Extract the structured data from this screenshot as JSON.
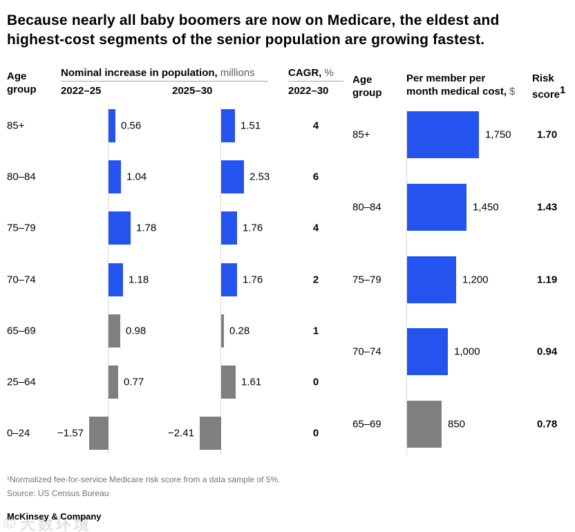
{
  "title": "Because nearly all baby boomers are now on Medicare, the eldest and highest-cost segments of the senior population are growing fastest.",
  "colors": {
    "blue": "#2453F0",
    "gray": "#7F7F7F",
    "axis_line": "#D8D8D8",
    "header_rule": "#A6A6A6",
    "unit_text": "#595959",
    "footnote_text": "#737373"
  },
  "headers": {
    "age_group": "Age group",
    "left_group_bold": "Nominal increase in population,",
    "left_group_unit": "millions",
    "left_col1": "2022–25",
    "left_col2": "2025–30",
    "cagr_bold": "CAGR,",
    "cagr_unit": "%",
    "cagr_sub": "2022–30",
    "right_cost_line1": "Per member per",
    "right_cost_line2": "month medical cost,",
    "right_cost_unit": "$",
    "risk_line1": "Risk",
    "risk_line2": "score",
    "risk_sup": "1"
  },
  "chart_data": [
    {
      "type": "bar",
      "orientation": "horizontal",
      "panel": "left",
      "title": "Nominal increase in population, millions",
      "categories": [
        "85+",
        "80–84",
        "75–79",
        "70–74",
        "65–69",
        "25–64",
        "0–24"
      ],
      "series": [
        {
          "name": "2022–25",
          "values": [
            0.56,
            1.04,
            1.78,
            1.18,
            0.98,
            0.77,
            -1.57
          ],
          "value_labels": [
            "0.56",
            "1.04",
            "1.78",
            "1.18",
            "0.98",
            "0.77",
            "−1.57"
          ]
        },
        {
          "name": "2025–30",
          "values": [
            1.51,
            2.53,
            1.76,
            1.76,
            0.28,
            1.61,
            -2.41
          ],
          "value_labels": [
            "1.51",
            "2.53",
            "1.76",
            "1.76",
            "0.28",
            "1.61",
            "−2.41"
          ]
        }
      ],
      "extra_column": {
        "header": "CAGR, % 2022–30",
        "values": [
          "4",
          "6",
          "4",
          "2",
          "1",
          "0",
          "0"
        ]
      },
      "bar_colors": [
        "blue",
        "blue",
        "blue",
        "blue",
        "gray",
        "gray",
        "gray"
      ],
      "grid": false,
      "legend_position": "none"
    },
    {
      "type": "bar",
      "orientation": "horizontal",
      "panel": "right",
      "title": "Per member per month medical cost, $",
      "categories": [
        "85+",
        "80–84",
        "75–79",
        "70–74",
        "65–69"
      ],
      "values": [
        1750,
        1450,
        1200,
        1000,
        850
      ],
      "value_labels": [
        "1,750",
        "1,450",
        "1,200",
        "1,000",
        "850"
      ],
      "extra_column": {
        "header": "Risk score¹",
        "values": [
          "1.70",
          "1.43",
          "1.19",
          "0.94",
          "0.78"
        ]
      },
      "bar_colors": [
        "blue",
        "blue",
        "blue",
        "blue",
        "gray"
      ],
      "grid": false,
      "legend_position": "none"
    }
  ],
  "footnote": "¹Normalized fee-for-service Medicare risk score from a data sample of 5%.",
  "source": "Source: US Census Bureau",
  "brand": "McKinsey & Company",
  "watermark": {
    "icon": "©",
    "text": "大数环境"
  }
}
